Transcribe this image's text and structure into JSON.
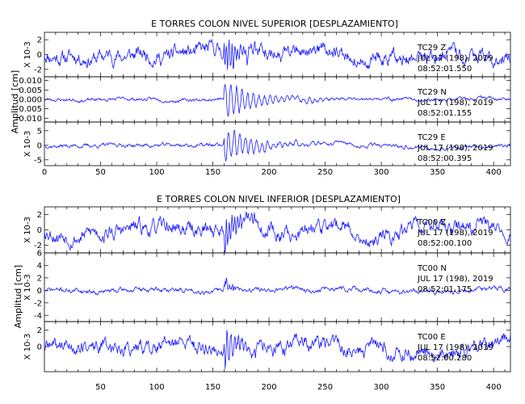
{
  "chart_data": [
    {
      "type": "line",
      "title": "E TORRES COLON NIVEL SUPERIOR [DESPLAZAMIENTO]",
      "ylabel": "Amplitud [cm]",
      "xlim": [
        0,
        415
      ],
      "x_ticks": [
        0,
        50,
        100,
        150,
        200,
        250,
        300,
        350,
        400
      ],
      "event_time_s": 160,
      "line_color": "#1a1aff",
      "series": [
        {
          "station_label": "TC29  Z",
          "date_label": "JUL 17 (198), 2019",
          "time_label": "08:52:01.550",
          "scale_label": "X 10-3",
          "ylim": [
            -3,
            3
          ],
          "y_ticks": [
            {
              "v": 2,
              "t": "2"
            },
            {
              "v": 0,
              "t": "0"
            },
            {
              "v": -2,
              "t": "-2"
            }
          ],
          "noise_amp": 0.9,
          "peak_amp": 2.8,
          "decay_s": 12,
          "freq_hz": 1.6,
          "seed": 11
        },
        {
          "station_label": "TC29  N",
          "date_label": "JUL 17 (198), 2019",
          "time_label": "08:52:01.155",
          "scale_label": "",
          "ylim": [
            -0.012,
            0.012
          ],
          "y_ticks": [
            {
              "v": 0.01,
              "t": "0.010"
            },
            {
              "v": 0.005,
              "t": "0.005"
            },
            {
              "v": 0.0,
              "t": "0.000"
            },
            {
              "v": -0.005,
              "t": "-0.005"
            },
            {
              "v": -0.01,
              "t": "-0.010"
            }
          ],
          "noise_amp": 0.0008,
          "peak_amp": 0.011,
          "decay_s": 30,
          "freq_hz": 2.2,
          "seed": 23
        },
        {
          "station_label": "TC29  E",
          "date_label": "JUL 17 (198), 2019",
          "time_label": "08:52:00.395",
          "scale_label": "X 10-3",
          "ylim": [
            -7,
            8
          ],
          "y_ticks": [
            {
              "v": 5,
              "t": "5"
            },
            {
              "v": 0,
              "t": "0"
            },
            {
              "v": -5,
              "t": "-5"
            }
          ],
          "noise_amp": 0.6,
          "peak_amp": 6.5,
          "decay_s": 28,
          "freq_hz": 1.8,
          "seed": 37
        }
      ]
    },
    {
      "type": "line",
      "title": "E TORRES COLON NIVEL INFERIOR [DESPLAZAMIENTO]",
      "ylabel": "Amplitud [cm]",
      "xlim": [
        0,
        415
      ],
      "x_ticks": [
        50,
        100,
        150,
        200,
        250,
        300,
        350,
        400
      ],
      "event_time_s": 160,
      "line_color": "#1a1aff",
      "series": [
        {
          "station_label": "TC00  Z",
          "date_label": "JUL 17 (198), 2019",
          "time_label": "08:52:00.100",
          "scale_label": "X 10-3",
          "ylim": [
            -3,
            3
          ],
          "y_ticks": [
            {
              "v": 2,
              "t": "2"
            },
            {
              "v": 0,
              "t": "0"
            },
            {
              "v": -2,
              "t": "-2"
            }
          ],
          "noise_amp": 0.9,
          "peak_amp": 2.6,
          "decay_s": 12,
          "freq_hz": 1.6,
          "seed": 53
        },
        {
          "station_label": "TC00  N",
          "date_label": "JUL 17 (198), 2019",
          "time_label": "08:52:01.175",
          "scale_label": "X 10-3",
          "ylim": [
            -5,
            6
          ],
          "y_ticks": [
            {
              "v": 6,
              "t": "6"
            },
            {
              "v": 4,
              "t": "4"
            },
            {
              "v": 2,
              "t": "2"
            },
            {
              "v": 0,
              "t": "0"
            },
            {
              "v": -2,
              "t": "-2"
            },
            {
              "v": -4,
              "t": "-4"
            }
          ],
          "noise_amp": 0.35,
          "peak_amp": 5.5,
          "decay_s": 6,
          "freq_hz": 2.0,
          "seed": 71
        },
        {
          "station_label": "TC00  E",
          "date_label": "JUL 17 (198), 2019",
          "time_label": "08:52:00.280",
          "scale_label": "X 10-3",
          "ylim": [
            -3,
            3
          ],
          "y_ticks": [
            {
              "v": 2,
              "t": "2"
            },
            {
              "v": 0,
              "t": "0"
            }
          ],
          "noise_amp": 0.8,
          "peak_amp": 2.8,
          "decay_s": 14,
          "freq_hz": 1.7,
          "seed": 89
        }
      ]
    }
  ]
}
